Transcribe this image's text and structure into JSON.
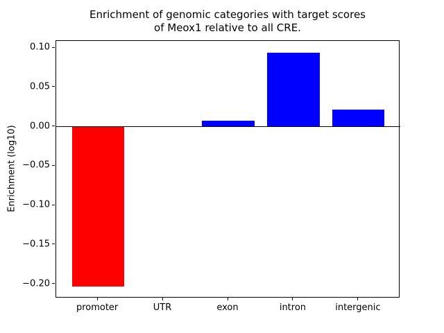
{
  "chart_data": {
    "type": "bar",
    "title": "Enrichment of genomic categories with target scores\nof Meox1 relative to all CRE.",
    "ylabel": "Enrichment (log10)",
    "xlabel": "",
    "categories": [
      "promoter",
      "UTR",
      "exon",
      "intron",
      "intergenic"
    ],
    "values": [
      -0.203,
      0.0,
      0.008,
      0.094,
      0.022
    ],
    "colors": [
      "#ff0000",
      "#0000ff",
      "#0000ff",
      "#0000ff",
      "#0000ff"
    ],
    "bar_width": 0.8,
    "ylim": [
      -0.218,
      0.109
    ],
    "xlim": [
      -0.64,
      4.64
    ],
    "yticks": [
      0.1,
      0.05,
      0.0,
      -0.05,
      -0.1,
      -0.15,
      -0.2
    ],
    "ytick_labels": [
      "0.10",
      "0.05",
      "0.00",
      "−0.05",
      "−0.10",
      "−0.15",
      "−0.20"
    ],
    "grid": false,
    "legend": null,
    "zero_line": true,
    "background_color": "#ffffff",
    "axis_color": "#000000"
  }
}
